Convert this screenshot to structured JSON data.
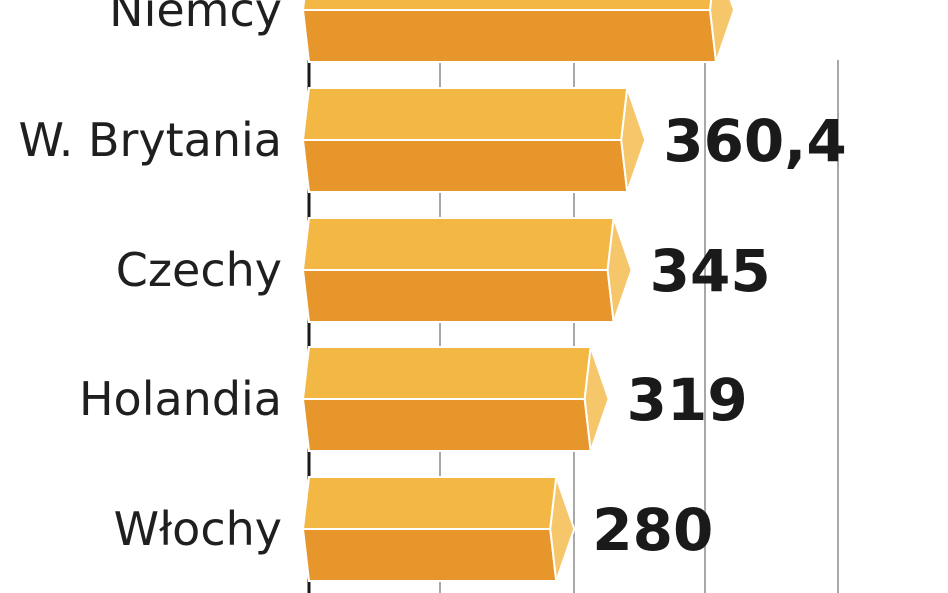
{
  "chart_data": {
    "type": "bar",
    "orientation": "horizontal",
    "categories": [
      "Niemcy",
      "W. Brytania",
      "Czechy",
      "Holandia",
      "Włochy"
    ],
    "values": [
      461,
      360.4,
      345,
      319,
      280
    ],
    "value_labels": [
      "",
      "360,4",
      "345",
      "319",
      "280"
    ],
    "grid": true,
    "colors": {
      "bar_top": "#f3b743",
      "bar_bottom": "#e6962a",
      "bar_cap": "#f6c66a",
      "grid": "#8c8c8c",
      "axis": "#1a1a1a"
    }
  }
}
